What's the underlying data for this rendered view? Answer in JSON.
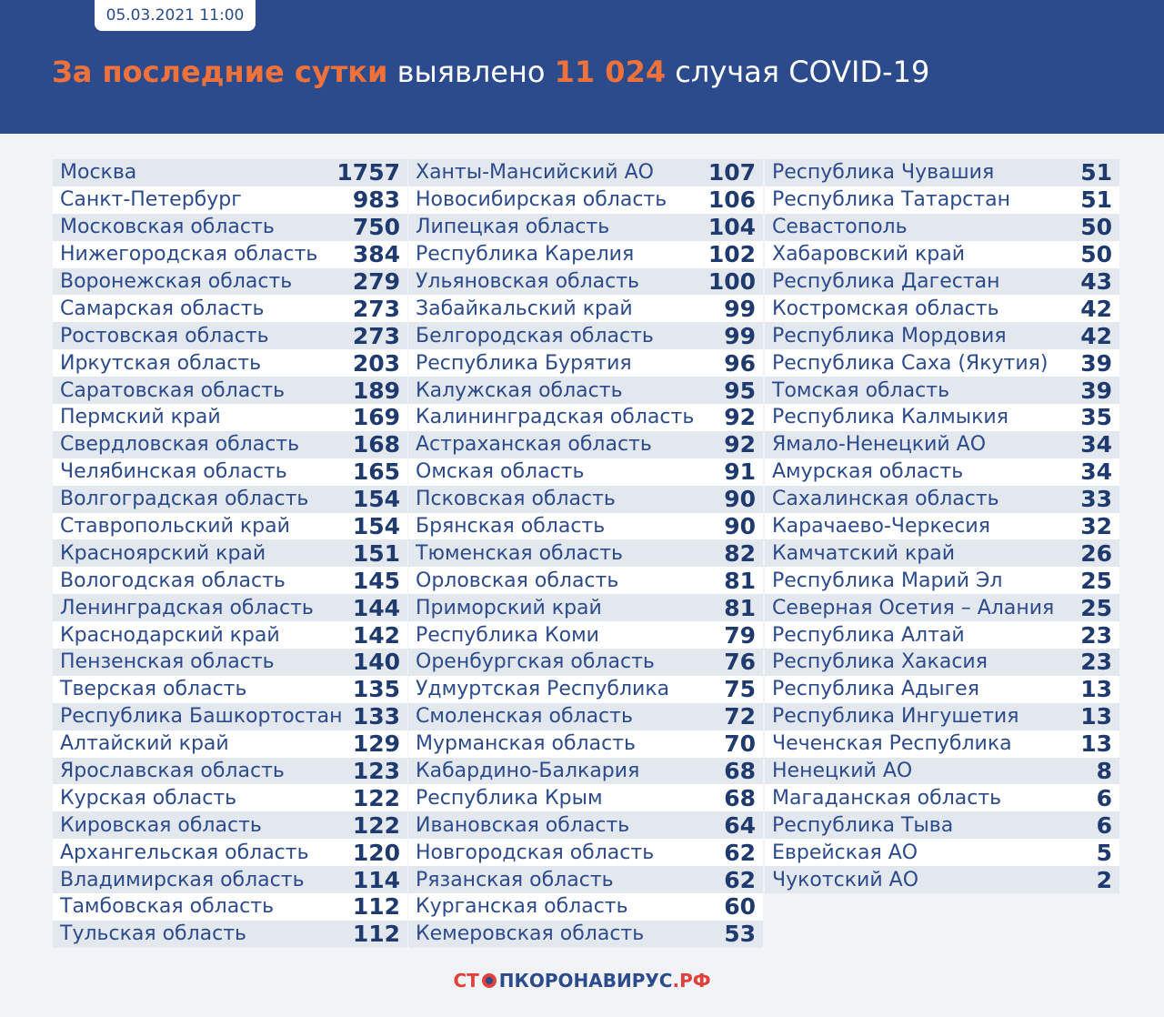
{
  "header": {
    "date": "05.03.2021 11:00",
    "title": {
      "part1": "За последние сутки",
      "part2": "выявлено",
      "part3": "11 024",
      "part4": "случая COVID-19"
    }
  },
  "table": {
    "columns": [
      {
        "rows": [
          [
            "Москва",
            1757
          ],
          [
            "Санкт-Петербург",
            983
          ],
          [
            "Московская область",
            750
          ],
          [
            "Нижегородская область",
            384
          ],
          [
            "Воронежская область",
            279
          ],
          [
            "Самарская область",
            273
          ],
          [
            "Ростовская область",
            273
          ],
          [
            "Иркутская область",
            203
          ],
          [
            "Саратовская область",
            189
          ],
          [
            "Пермский край",
            169
          ],
          [
            "Свердловская область",
            168
          ],
          [
            "Челябинская область",
            165
          ],
          [
            "Волгоградская область",
            154
          ],
          [
            "Ставропольский край",
            154
          ],
          [
            "Красноярский край",
            151
          ],
          [
            "Вологодская область",
            145
          ],
          [
            "Ленинградская область",
            144
          ],
          [
            "Краснодарский край",
            142
          ],
          [
            "Пензенская область",
            140
          ],
          [
            "Тверская область",
            135
          ],
          [
            "Республика Башкортостан",
            133
          ],
          [
            "Алтайский край",
            129
          ],
          [
            "Ярославская область",
            123
          ],
          [
            "Курская область",
            122
          ],
          [
            "Кировская область",
            122
          ],
          [
            "Архангельская область",
            120
          ],
          [
            "Владимирская область",
            114
          ],
          [
            "Тамбовская область",
            112
          ],
          [
            "Тульская область",
            112
          ]
        ]
      },
      {
        "rows": [
          [
            "Ханты-Мансийский АО",
            107
          ],
          [
            "Новосибирская область",
            106
          ],
          [
            "Липецкая область",
            104
          ],
          [
            "Республика Карелия",
            102
          ],
          [
            "Ульяновская область",
            100
          ],
          [
            "Забайкальский край",
            99
          ],
          [
            "Белгородская область",
            99
          ],
          [
            "Республика Бурятия",
            96
          ],
          [
            "Калужская область",
            95
          ],
          [
            "Калининградская область",
            92
          ],
          [
            "Астраханская область",
            92
          ],
          [
            "Омская область",
            91
          ],
          [
            "Псковская область",
            90
          ],
          [
            "Брянская область",
            90
          ],
          [
            "Тюменская область",
            82
          ],
          [
            "Орловская область",
            81
          ],
          [
            "Приморский край",
            81
          ],
          [
            "Республика Коми",
            79
          ],
          [
            "Оренбургская область",
            76
          ],
          [
            "Удмуртская Республика",
            75
          ],
          [
            "Смоленская область",
            72
          ],
          [
            "Мурманская область",
            70
          ],
          [
            "Кабардино-Балкария",
            68
          ],
          [
            "Республика Крым",
            68
          ],
          [
            "Ивановская область",
            64
          ],
          [
            "Новгородская область",
            62
          ],
          [
            "Рязанская область",
            62
          ],
          [
            "Курганская область",
            60
          ],
          [
            "Кемеровская область",
            53
          ]
        ]
      },
      {
        "rows": [
          [
            "Республика Чувашия",
            51
          ],
          [
            "Республика Татарстан",
            51
          ],
          [
            "Севастополь",
            50
          ],
          [
            "Хабаровский край",
            50
          ],
          [
            "Республика Дагестан",
            43
          ],
          [
            "Костромская область",
            42
          ],
          [
            "Республика Мордовия",
            42
          ],
          [
            "Республика Саха (Якутия)",
            39
          ],
          [
            "Томская область",
            39
          ],
          [
            "Республика Калмыкия",
            35
          ],
          [
            "Ямало-Ненецкий АО",
            34
          ],
          [
            "Амурская область",
            34
          ],
          [
            "Сахалинская область",
            33
          ],
          [
            "Карачаево-Черкесия",
            32
          ],
          [
            "Камчатский край",
            26
          ],
          [
            "Республика Марий Эл",
            25
          ],
          [
            "Северная Осетия – Алания",
            25
          ],
          [
            "Республика Алтай",
            23
          ],
          [
            "Республика Хакасия",
            23
          ],
          [
            "Республика Адыгея",
            13
          ],
          [
            "Республика Ингушетия",
            13
          ],
          [
            "Чеченская Республика",
            13
          ],
          [
            "Ненецкий АО",
            8
          ],
          [
            "Магаданская область",
            6
          ],
          [
            "Республика Тыва",
            6
          ],
          [
            "Еврейская АО",
            5
          ],
          [
            "Чукотский АО",
            2
          ]
        ]
      }
    ]
  },
  "footer": {
    "logo": [
      "СТ",
      "ПКОРОНАВИРУС",
      ".РФ"
    ]
  }
}
